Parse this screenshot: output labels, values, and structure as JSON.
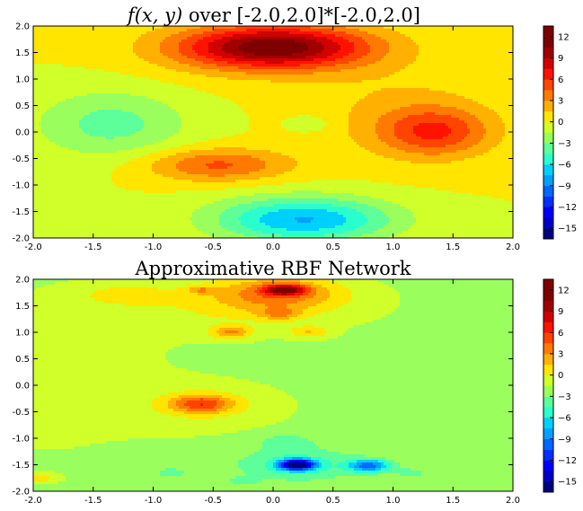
{
  "chart_data": [
    {
      "type": "contourf",
      "title": "f(x, y) over [-2.0,2.0]*[-2.0,2.0]",
      "title_parts": {
        "math": "f(x, y)",
        "rest": " over [-2.0,2.0]*[-2.0,2.0]"
      },
      "xlabel": "",
      "ylabel": "",
      "xlim": [
        -2.0,
        2.0
      ],
      "ylim": [
        -2.0,
        2.0
      ],
      "xticks": [
        "-2.0",
        "-1.5",
        "-1.0",
        "-0.5",
        "0.0",
        "0.5",
        "1.0",
        "1.5",
        "2.0"
      ],
      "yticks": [
        "-2.0",
        "-1.5",
        "-1.0",
        "-0.5",
        "0.0",
        "0.5",
        "1.0",
        "1.5",
        "2.0"
      ],
      "background_level": 0,
      "features": [
        {
          "x": 0.0,
          "y": 1.6,
          "sx": 0.55,
          "sy": 0.28,
          "amp": 10.5
        },
        {
          "x": 0.0,
          "y": 1.55,
          "sx": 0.75,
          "sy": 0.45,
          "amp": 1.5
        },
        {
          "x": 1.35,
          "y": 0.0,
          "sx": 0.32,
          "sy": 0.32,
          "amp": 5.2
        },
        {
          "x": 1.1,
          "y": 0.3,
          "sx": 0.55,
          "sy": 0.6,
          "amp": 1.8
        },
        {
          "x": -0.47,
          "y": -0.62,
          "sx": 0.42,
          "sy": 0.22,
          "amp": 4.8
        },
        {
          "x": 0.25,
          "y": -1.65,
          "sx": 0.52,
          "sy": 0.3,
          "amp": -7.6
        },
        {
          "x": -1.35,
          "y": 0.15,
          "sx": 0.45,
          "sy": 0.45,
          "amp": -3.6
        },
        {
          "x": 0.3,
          "y": 0.15,
          "sx": 0.12,
          "sy": 0.1,
          "amp": -2.0
        }
      ]
    },
    {
      "type": "contourf",
      "title": "Approximative RBF Network",
      "xlabel": "",
      "ylabel": "",
      "xlim": [
        -2.0,
        2.0
      ],
      "ylim": [
        -2.0,
        2.0
      ],
      "xticks": [
        "-2.0",
        "-1.5",
        "-1.0",
        "-0.5",
        "0.0",
        "0.5",
        "1.0",
        "1.5",
        "2.0"
      ],
      "yticks": [
        "-2.0",
        "-1.5",
        "-1.0",
        "-0.5",
        "0.0",
        "0.5",
        "1.0",
        "1.5",
        "2.0"
      ],
      "background_level": -2,
      "features": [
        {
          "x": 0.1,
          "y": 1.8,
          "sx": 0.12,
          "sy": 0.07,
          "amp": 9.0
        },
        {
          "x": 0.05,
          "y": 1.75,
          "sx": 0.35,
          "sy": 0.22,
          "amp": 4.5
        },
        {
          "x": -0.2,
          "y": 1.55,
          "sx": 0.7,
          "sy": 0.35,
          "amp": 2.3
        },
        {
          "x": 0.05,
          "y": 1.35,
          "sx": 0.12,
          "sy": 0.08,
          "amp": 3.5
        },
        {
          "x": -1.25,
          "y": 1.7,
          "sx": 0.25,
          "sy": 0.13,
          "amp": 2.2
        },
        {
          "x": -0.6,
          "y": 1.8,
          "sx": 0.08,
          "sy": 0.05,
          "amp": 3.0
        },
        {
          "x": -0.35,
          "y": 1.0,
          "sx": 0.12,
          "sy": 0.09,
          "amp": 4.5
        },
        {
          "x": 0.3,
          "y": 1.0,
          "sx": 0.12,
          "sy": 0.08,
          "amp": 3.0
        },
        {
          "x": -0.6,
          "y": -0.35,
          "sx": 0.18,
          "sy": 0.12,
          "amp": 6.0
        },
        {
          "x": -0.55,
          "y": -0.4,
          "sx": 0.45,
          "sy": 0.3,
          "amp": 1.8
        },
        {
          "x": 0.2,
          "y": -1.5,
          "sx": 0.1,
          "sy": 0.07,
          "amp": -14.0
        },
        {
          "x": 0.2,
          "y": -1.5,
          "sx": 0.35,
          "sy": 0.2,
          "amp": -3.0
        },
        {
          "x": 0.8,
          "y": -1.52,
          "sx": 0.12,
          "sy": 0.08,
          "amp": -7.5
        },
        {
          "x": -1.9,
          "y": 0.2,
          "sx": 0.9,
          "sy": 1.3,
          "amp": 0.9
        },
        {
          "x": 0.1,
          "y": -1.05,
          "sx": 0.2,
          "sy": 0.12,
          "amp": -1.5
        },
        {
          "x": -0.85,
          "y": -1.65,
          "sx": 0.08,
          "sy": 0.06,
          "amp": -2.5
        },
        {
          "x": -1.95,
          "y": -1.75,
          "sx": 0.1,
          "sy": 0.06,
          "amp": 2.5
        },
        {
          "x": -0.25,
          "y": -1.8,
          "sx": 0.08,
          "sy": 0.05,
          "amp": -2.0
        },
        {
          "x": 1.15,
          "y": -1.65,
          "sx": 0.08,
          "sy": 0.05,
          "amp": -2.0
        }
      ]
    }
  ],
  "colorbar": {
    "levels": [
      -16.5,
      -15,
      -13.5,
      -12,
      -10.5,
      -9,
      -7.5,
      -6,
      -4.5,
      -3,
      -1.5,
      0,
      1.5,
      3,
      4.5,
      6,
      7.5,
      9,
      10.5,
      12,
      13.5
    ],
    "tick_values": [
      12,
      9,
      6,
      3,
      0,
      -3,
      -6,
      -9,
      -12,
      -15
    ],
    "tick_labels": [
      "12",
      "9",
      "6",
      "3",
      "0",
      "−3",
      "−6",
      "−9",
      "−12",
      "−15"
    ],
    "colors": [
      "#00007f",
      "#0000c8",
      "#0000ff",
      "#0030ff",
      "#0068ff",
      "#00a0ff",
      "#00d0ff",
      "#29ffce",
      "#5dff9a",
      "#9aff5d",
      "#d0ff29",
      "#ffe500",
      "#ffb000",
      "#ff7a00",
      "#ff4400",
      "#ff1300",
      "#d20000",
      "#a00000",
      "#7f0000",
      "#7f0000"
    ]
  }
}
